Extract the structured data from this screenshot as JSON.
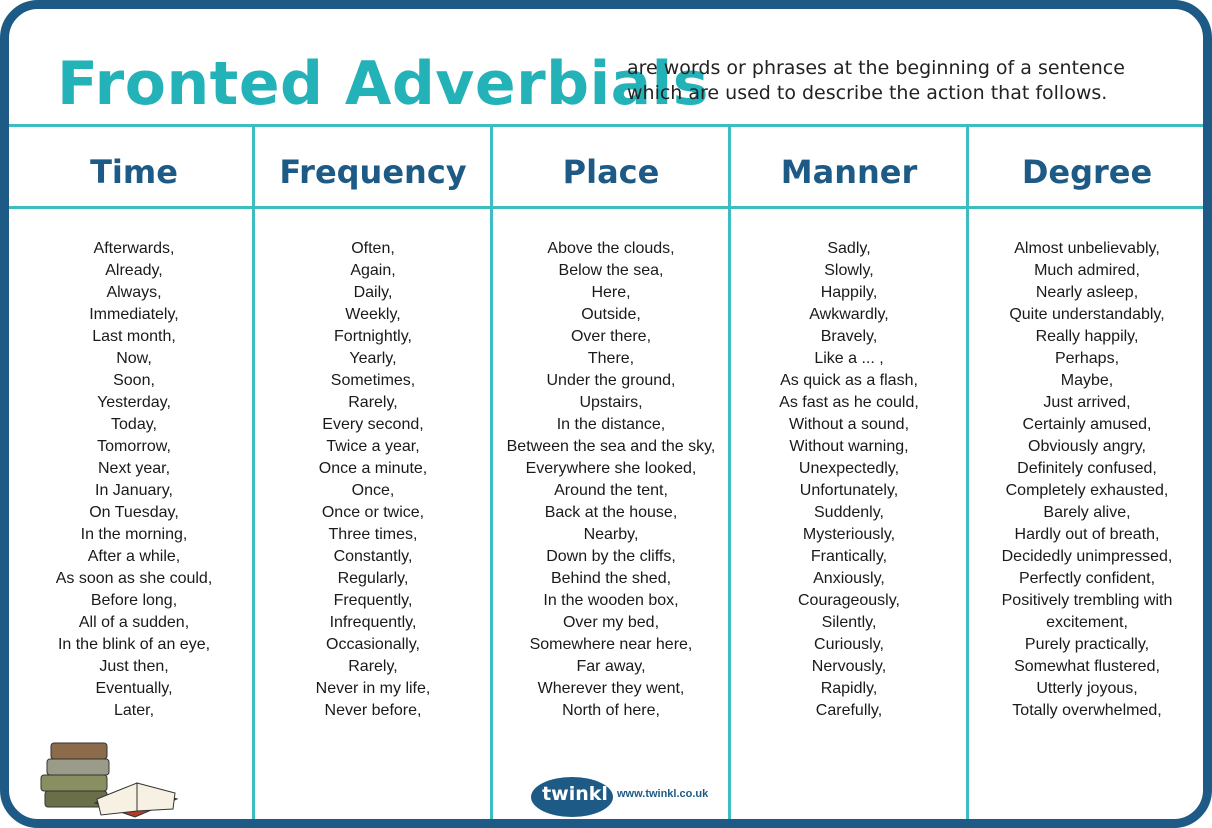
{
  "header": {
    "title": "Fronted Adverbials",
    "description": "are words or phrases at the beginning of a sentence which are used to describe the action that follows."
  },
  "columns": [
    {
      "heading": "Time",
      "items": [
        "Afterwards,",
        "Already,",
        "Always,",
        "Immediately,",
        "Last month,",
        "Now,",
        "Soon,",
        "Yesterday,",
        "Today,",
        "Tomorrow,",
        "Next year,",
        "In January,",
        "On Tuesday,",
        "In the morning,",
        "After a while,",
        "As soon as she could,",
        "Before long,",
        "All of a sudden,",
        "In the blink of an eye,",
        "Just then,",
        "Eventually,",
        "Later,"
      ]
    },
    {
      "heading": "Frequency",
      "items": [
        "Often,",
        "Again,",
        "Daily,",
        "Weekly,",
        "Fortnightly,",
        "Yearly,",
        "Sometimes,",
        "Rarely,",
        "Every second,",
        "Twice a year,",
        "Once a minute,",
        "Once,",
        "Once or twice,",
        "Three times,",
        "Constantly,",
        "Regularly,",
        "Frequently,",
        "Infrequently,",
        "Occasionally,",
        "Rarely,",
        "Never in my life,",
        "Never before,"
      ]
    },
    {
      "heading": "Place",
      "items": [
        "Above the clouds,",
        "Below the sea,",
        "Here,",
        "Outside,",
        "Over there,",
        "There,",
        "Under the ground,",
        "Upstairs,",
        "In the distance,",
        "Between the sea and the sky,",
        "Everywhere she looked,",
        "Around the tent,",
        "Back at the house,",
        "Nearby,",
        "Down by the cliffs,",
        "Behind the shed,",
        "In the wooden box,",
        "Over my bed,",
        "Somewhere near here,",
        "Far away,",
        "Wherever they went,",
        "North of here,"
      ]
    },
    {
      "heading": "Manner",
      "items": [
        "Sadly,",
        "Slowly,",
        "Happily,",
        "Awkwardly,",
        "Bravely,",
        "Like a ... ,",
        "As quick as a flash,",
        "As fast as he could,",
        "Without a sound,",
        "Without warning,",
        "Unexpectedly,",
        "Unfortunately,",
        "Suddenly,",
        "Mysteriously,",
        "Frantically,",
        "Anxiously,",
        "Courageously,",
        "Silently,",
        "Curiously,",
        "Nervously,",
        "Rapidly,",
        "Carefully,"
      ]
    },
    {
      "heading": "Degree",
      "items": [
        "Almost unbelievably,",
        "Much admired,",
        "Nearly asleep,",
        "Quite understandably,",
        "Really happily,",
        "Perhaps,",
        "Maybe,",
        "Just arrived,",
        "Certainly amused,",
        "Obviously angry,",
        "Definitely confused,",
        "Completely exhausted,",
        "Barely alive,",
        "Hardly out of breath,",
        "Decidedly unimpressed,",
        "Perfectly confident,",
        "Positively trembling with excitement,",
        "Purely practically,",
        "Somewhat flustered,",
        "Utterly joyous,",
        "Totally overwhelmed,"
      ]
    }
  ],
  "footer": {
    "logo": "twinkl",
    "url": "www.twinkl.co.uk"
  }
}
